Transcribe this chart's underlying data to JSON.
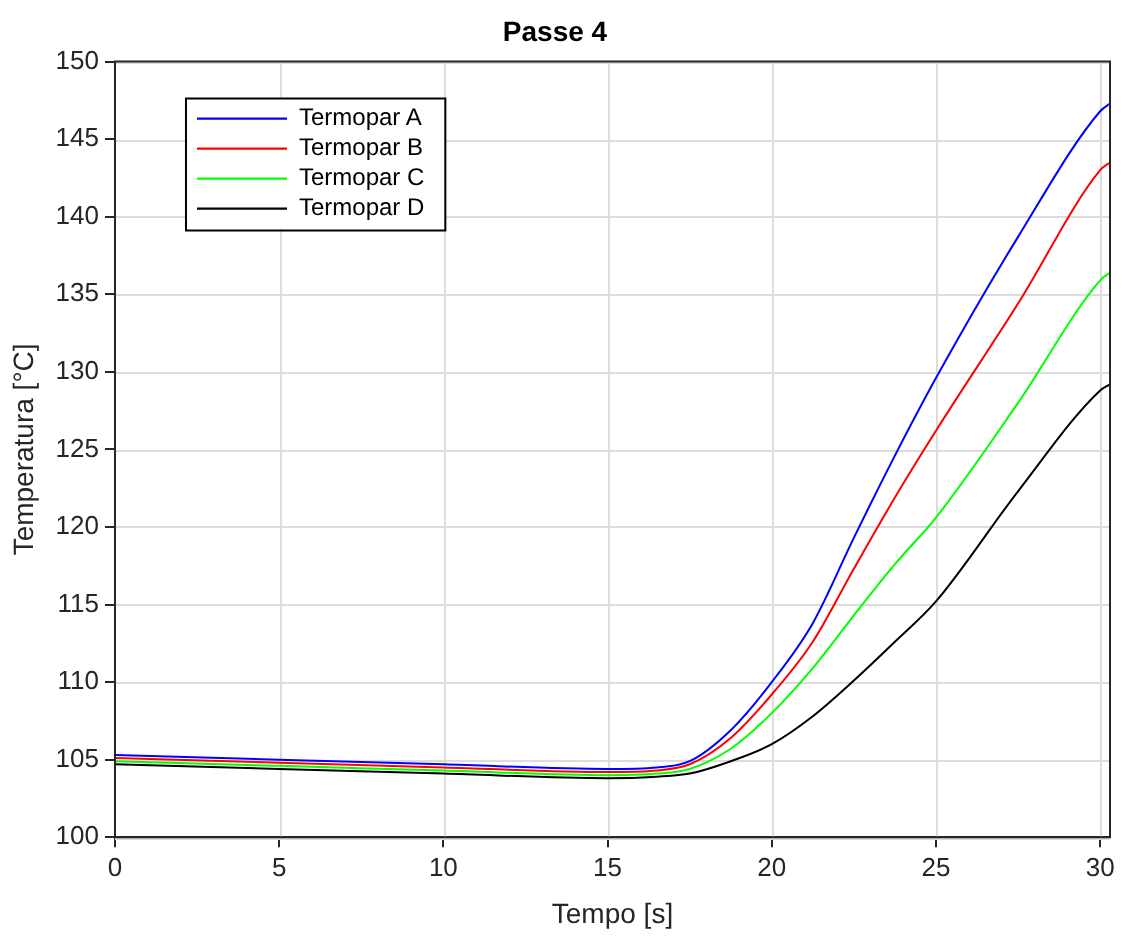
{
  "chart_data": {
    "type": "line",
    "title": "Passe 4",
    "xlabel": "Tempo [s]",
    "ylabel": "Temperatura [°C]",
    "x": [
      0,
      5,
      10,
      15,
      16.5,
      17.5,
      18.75,
      20,
      21.25,
      22.5,
      23.75,
      25,
      27.5,
      30,
      30.3
    ],
    "series": [
      {
        "name": "Termopar A",
        "color": "#0000ff",
        "values": [
          105.3,
          105,
          104.7,
          104.4,
          104.5,
          104.9,
          106.9,
          110,
          113.8,
          119.3,
          124.6,
          129.6,
          138.7,
          146.8,
          147.3
        ]
      },
      {
        "name": "Termopar B",
        "color": "#ff0000",
        "values": [
          105.1,
          104.8,
          104.5,
          104.2,
          104.3,
          104.7,
          106.4,
          109.2,
          112.6,
          117.3,
          121.9,
          126.2,
          134.4,
          143,
          143.5
        ]
      },
      {
        "name": "Termopar C",
        "color": "#00ff00",
        "values": [
          104.9,
          104.6,
          104.3,
          104,
          104.1,
          104.4,
          105.7,
          108,
          110.9,
          114.3,
          117.6,
          120.6,
          128,
          135.9,
          136.4
        ]
      },
      {
        "name": "Termopar D",
        "color": "#000000",
        "values": [
          104.7,
          104.4,
          104.1,
          103.8,
          103.9,
          104.1,
          104.9,
          106,
          107.8,
          110.1,
          112.6,
          115.2,
          122.3,
          128.8,
          129.2
        ]
      }
    ],
    "xlim": [
      0,
      30.3
    ],
    "xticks": [
      0,
      5,
      10,
      15,
      20,
      25,
      30
    ],
    "ylim": [
      100,
      150
    ],
    "yticks": [
      100,
      105,
      110,
      115,
      120,
      125,
      130,
      135,
      140,
      145,
      150
    ],
    "grid": true,
    "legend": "top left",
    "marker": "none",
    "line_style": "solid"
  }
}
